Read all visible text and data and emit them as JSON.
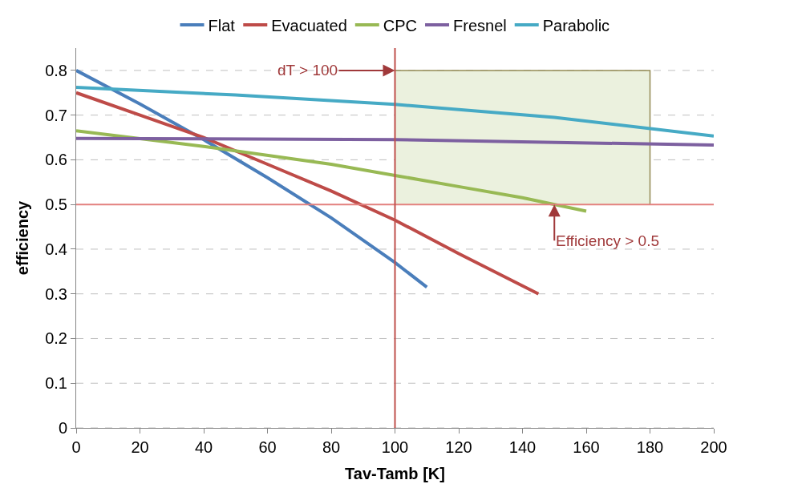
{
  "chart_data": {
    "type": "line",
    "xlabel": "Tav-Tamb [K]",
    "ylabel": "efficiency",
    "xlim": [
      0,
      200
    ],
    "xticks": [
      0,
      20,
      40,
      60,
      80,
      100,
      120,
      140,
      160,
      180,
      200
    ],
    "ylim": [
      0,
      0.85
    ],
    "yticks": [
      0,
      0.1,
      0.2,
      0.3,
      0.4,
      0.5,
      0.6,
      0.7,
      0.8
    ],
    "grid": "y",
    "legend": "top",
    "marker": "none",
    "line_style": "solid",
    "series": [
      {
        "name": "Flat",
        "color": "#4a7ebb",
        "x": [
          0,
          20,
          40,
          60,
          80,
          100,
          110
        ],
        "values": [
          0.8,
          0.725,
          0.645,
          0.56,
          0.47,
          0.37,
          0.315
        ]
      },
      {
        "name": "Evacuated",
        "color": "#be4b48",
        "x": [
          0,
          20,
          40,
          60,
          80,
          100,
          120,
          145
        ],
        "values": [
          0.75,
          0.7,
          0.65,
          0.59,
          0.53,
          0.465,
          0.39,
          0.3
        ]
      },
      {
        "name": "CPC",
        "color": "#98b954",
        "x": [
          0,
          40,
          80,
          100,
          120,
          140,
          160
        ],
        "values": [
          0.665,
          0.63,
          0.59,
          0.565,
          0.54,
          0.515,
          0.485
        ]
      },
      {
        "name": "Fresnel",
        "color": "#7d60a0",
        "x": [
          0,
          100,
          200
        ],
        "values": [
          0.648,
          0.645,
          0.633
        ]
      },
      {
        "name": "Parabolic",
        "color": "#46aac5",
        "x": [
          0,
          50,
          100,
          150,
          200
        ],
        "values": [
          0.762,
          0.745,
          0.724,
          0.695,
          0.653
        ]
      }
    ],
    "ref_lines": [
      {
        "axis": "x",
        "value": 100,
        "color": "#c0504d"
      },
      {
        "axis": "y",
        "value": 0.5,
        "color": "#e3807e"
      }
    ],
    "bands": [
      {
        "axis": "x",
        "from": 100,
        "to": 180,
        "color": "#ebf1de"
      }
    ],
    "annotations": [
      {
        "text": "dT > 100",
        "x": 100,
        "y": 0.8
      },
      {
        "text": "Efficiency > 0.5",
        "x": 150,
        "y": 0.5
      }
    ]
  }
}
